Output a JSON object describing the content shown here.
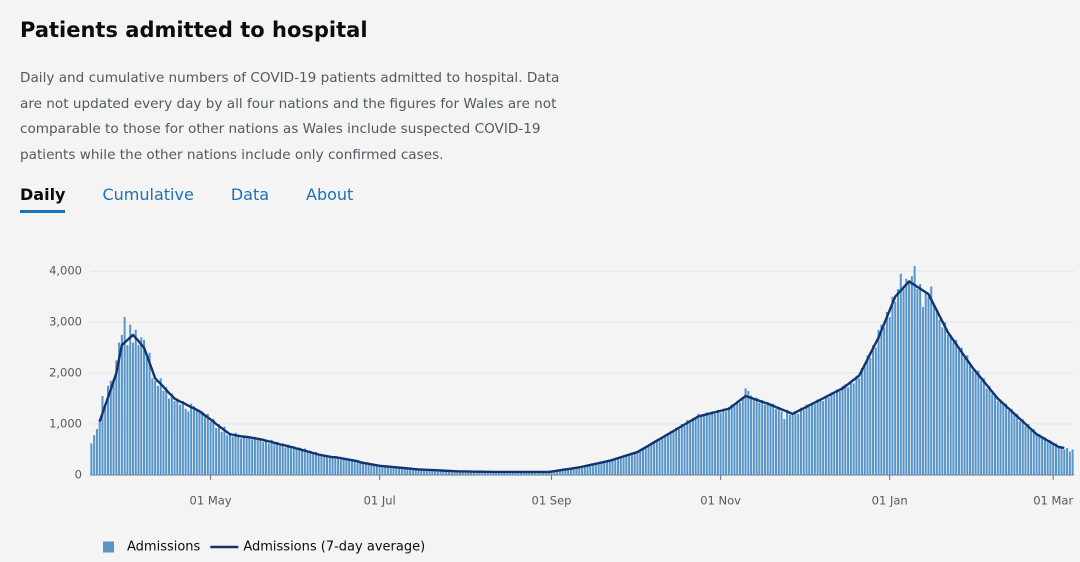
{
  "header": {
    "title": "Patients admitted to hospital",
    "description": "Daily and cumulative numbers of COVID-19 patients admitted to hospital. Data are not updated every day by all four nations and the figures for Wales are not comparable to those for other nations as Wales include suspected COVID-19 patients while the other nations include only confirmed cases."
  },
  "tabs": [
    "Daily",
    "Cumulative",
    "Data",
    "About"
  ],
  "chart_data": {
    "type": "bar",
    "x": [
      "19 Mar",
      "20 Mar",
      "21 Mar",
      "22 Mar",
      "23 Mar",
      "24 Mar",
      "25 Mar",
      "26 Mar",
      "27 Mar",
      "28 Mar",
      "29 Mar",
      "30 Mar",
      "31 Mar",
      "01 Apr",
      "02 Apr",
      "03 Apr",
      "04 Apr",
      "05 Apr",
      "06 Apr",
      "07 Apr",
      "08 Apr",
      "09 Apr",
      "10 Apr",
      "11 Apr",
      "12 Apr",
      "13 Apr",
      "14 Apr",
      "15 Apr",
      "16 Apr",
      "17 Apr",
      "18 Apr",
      "19 Apr",
      "20 Apr",
      "21 Apr",
      "22 Apr",
      "23 Apr",
      "24 Apr",
      "25 Apr",
      "26 Apr",
      "27 Apr",
      "28 Apr",
      "29 Apr",
      "30 Apr",
      "01 May",
      "02 May",
      "03 May",
      "04 May",
      "05 May",
      "06 May",
      "07 May",
      "08 May",
      "09 May",
      "10 May",
      "11 May",
      "12 May",
      "13 May",
      "14 May",
      "15 May",
      "16 May",
      "17 May",
      "18 May",
      "19 May",
      "20 May",
      "21 May",
      "22 May",
      "23 May",
      "24 May",
      "25 May",
      "26 May",
      "27 May",
      "28 May",
      "29 May",
      "30 May",
      "31 May",
      "01 Jun",
      "02 Jun",
      "03 Jun",
      "04 Jun",
      "05 Jun",
      "06 Jun",
      "07 Jun",
      "08 Jun",
      "09 Jun",
      "10 Jun",
      "11 Jun",
      "12 Jun",
      "13 Jun",
      "14 Jun",
      "15 Jun",
      "16 Jun",
      "17 Jun",
      "18 Jun",
      "19 Jun",
      "20 Jun",
      "21 Jun",
      "22 Jun",
      "23 Jun",
      "24 Jun",
      "25 Jun",
      "26 Jun",
      "27 Jun",
      "28 Jun",
      "29 Jun",
      "30 Jun",
      "01 Jul",
      "02 Jul",
      "03 Jul",
      "04 Jul",
      "05 Jul",
      "06 Jul",
      "07 Jul",
      "08 Jul",
      "09 Jul",
      "10 Jul",
      "11 Jul",
      "12 Jul",
      "13 Jul",
      "14 Jul",
      "15 Jul",
      "16 Jul",
      "17 Jul",
      "18 Jul",
      "19 Jul",
      "20 Jul",
      "21 Jul",
      "22 Jul",
      "23 Jul",
      "24 Jul",
      "25 Jul",
      "26 Jul",
      "27 Jul",
      "28 Jul",
      "29 Jul",
      "30 Jul",
      "31 Jul",
      "01 Aug",
      "02 Aug",
      "03 Aug",
      "04 Aug",
      "05 Aug",
      "06 Aug",
      "07 Aug",
      "08 Aug",
      "09 Aug",
      "10 Aug",
      "11 Aug",
      "12 Aug",
      "13 Aug",
      "14 Aug",
      "15 Aug",
      "16 Aug",
      "17 Aug",
      "18 Aug",
      "19 Aug",
      "20 Aug",
      "21 Aug",
      "22 Aug",
      "23 Aug",
      "24 Aug",
      "25 Aug",
      "26 Aug",
      "27 Aug",
      "28 Aug",
      "29 Aug",
      "30 Aug",
      "31 Aug",
      "01 Sep",
      "02 Sep",
      "03 Sep",
      "04 Sep",
      "05 Sep",
      "06 Sep",
      "07 Sep",
      "08 Sep",
      "09 Sep",
      "10 Sep",
      "11 Sep",
      "12 Sep",
      "13 Sep",
      "14 Sep",
      "15 Sep",
      "16 Sep",
      "17 Sep",
      "18 Sep",
      "19 Sep",
      "20 Sep",
      "21 Sep",
      "22 Sep",
      "23 Sep",
      "24 Sep",
      "25 Sep",
      "26 Sep",
      "27 Sep",
      "28 Sep",
      "29 Sep",
      "30 Sep",
      "01 Oct",
      "02 Oct",
      "03 Oct",
      "04 Oct",
      "05 Oct",
      "06 Oct",
      "07 Oct",
      "08 Oct",
      "09 Oct",
      "10 Oct",
      "11 Oct",
      "12 Oct",
      "13 Oct",
      "14 Oct",
      "15 Oct",
      "16 Oct",
      "17 Oct",
      "18 Oct",
      "19 Oct",
      "20 Oct",
      "21 Oct",
      "22 Oct",
      "23 Oct",
      "24 Oct",
      "25 Oct",
      "26 Oct",
      "27 Oct",
      "28 Oct",
      "29 Oct",
      "30 Oct",
      "31 Oct",
      "01 Nov",
      "02 Nov",
      "03 Nov",
      "04 Nov",
      "05 Nov",
      "06 Nov",
      "07 Nov",
      "08 Nov",
      "09 Nov",
      "10 Nov",
      "11 Nov",
      "12 Nov",
      "13 Nov",
      "14 Nov",
      "15 Nov",
      "16 Nov",
      "17 Nov",
      "18 Nov",
      "19 Nov",
      "20 Nov",
      "21 Nov",
      "22 Nov",
      "23 Nov",
      "24 Nov",
      "25 Nov",
      "26 Nov",
      "27 Nov",
      "28 Nov",
      "29 Nov",
      "30 Nov",
      "01 Dec",
      "02 Dec",
      "03 Dec",
      "04 Dec",
      "05 Dec",
      "06 Dec",
      "07 Dec",
      "08 Dec",
      "09 Dec",
      "10 Dec",
      "11 Dec",
      "12 Dec",
      "13 Dec",
      "14 Dec",
      "15 Dec",
      "16 Dec",
      "17 Dec",
      "18 Dec",
      "19 Dec",
      "20 Dec",
      "21 Dec",
      "22 Dec",
      "23 Dec",
      "24 Dec",
      "25 Dec",
      "26 Dec",
      "27 Dec",
      "28 Dec",
      "29 Dec",
      "30 Dec",
      "31 Dec",
      "01 Jan",
      "02 Jan",
      "03 Jan",
      "04 Jan",
      "05 Jan",
      "06 Jan",
      "07 Jan",
      "08 Jan",
      "09 Jan",
      "10 Jan",
      "11 Jan",
      "12 Jan",
      "13 Jan",
      "14 Jan",
      "15 Jan",
      "16 Jan",
      "17 Jan",
      "18 Jan",
      "19 Jan",
      "20 Jan",
      "21 Jan",
      "22 Jan",
      "23 Jan",
      "24 Jan",
      "25 Jan",
      "26 Jan",
      "27 Jan",
      "28 Jan",
      "29 Jan",
      "30 Jan",
      "31 Jan",
      "01 Feb",
      "02 Feb",
      "03 Feb",
      "04 Feb",
      "05 Feb",
      "06 Feb",
      "07 Feb",
      "08 Feb",
      "09 Feb",
      "10 Feb",
      "11 Feb",
      "12 Feb",
      "13 Feb",
      "14 Feb",
      "15 Feb",
      "16 Feb",
      "17 Feb",
      "18 Feb",
      "19 Feb",
      "20 Feb",
      "21 Feb",
      "22 Feb",
      "23 Feb",
      "24 Feb",
      "25 Feb",
      "26 Feb",
      "27 Feb",
      "28 Feb",
      "01 Mar",
      "02 Mar",
      "03 Mar",
      "04 Mar",
      "05 Mar",
      "06 Mar",
      "07 Mar",
      "08 Mar"
    ],
    "series": [
      {
        "name": "Admissions",
        "type": "bar",
        "color": "#5694ca",
        "values": [
          620,
          780,
          900,
          1100,
          1550,
          1350,
          1750,
          1850,
          1880,
          2250,
          2600,
          2750,
          3100,
          2550,
          2950,
          2600,
          2850,
          2550,
          2700,
          2650,
          2300,
          2400,
          1900,
          1850,
          1750,
          1900,
          1650,
          1720,
          1500,
          1600,
          1450,
          1500,
          1380,
          1450,
          1300,
          1250,
          1400,
          1350,
          1300,
          1280,
          1250,
          1150,
          1200,
          1050,
          1100,
          920,
          1000,
          850,
          950,
          780,
          820,
          750,
          830,
          790,
          720,
          780,
          740,
          760,
          700,
          750,
          690,
          720,
          650,
          700,
          620,
          690,
          600,
          650,
          570,
          620,
          540,
          600,
          530,
          560,
          500,
          540,
          470,
          520,
          440,
          470,
          410,
          450,
          380,
          400,
          360,
          390,
          340,
          370,
          330,
          350,
          300,
          340,
          290,
          320,
          270,
          300,
          250,
          280,
          230,
          250,
          210,
          230,
          190,
          200,
          170,
          185,
          160,
          175,
          150,
          165,
          140,
          155,
          130,
          140,
          120,
          130,
          110,
          120,
          105,
          110,
          100,
          108,
          95,
          100,
          90,
          95,
          85,
          90,
          80,
          85,
          75,
          78,
          70,
          72,
          68,
          72,
          65,
          70,
          62,
          68,
          64,
          66,
          60,
          65,
          58,
          63,
          57,
          62,
          58,
          62,
          57,
          61,
          59,
          63,
          56,
          60,
          58,
          62,
          57,
          61,
          59,
          63,
          58,
          62,
          60,
          64,
          70,
          74,
          88,
          90,
          105,
          106,
          120,
          122,
          138,
          140,
          155,
          165,
          170,
          190,
          192,
          215,
          218,
          240,
          242,
          262,
          265,
          290,
          300,
          310,
          340,
          345,
          370,
          378,
          405,
          410,
          440,
          445,
          490,
          500,
          560,
          560,
          620,
          630,
          690,
          690,
          750,
          760,
          820,
          860,
          840,
          930,
          900,
          1000,
          960,
          1080,
          1030,
          1120,
          1100,
          1200,
          1180,
          1150,
          1230,
          1180,
          1250,
          1200,
          1280,
          1220,
          1300,
          1250,
          1330,
          1380,
          1350,
          1450,
          1420,
          1530,
          1700,
          1650,
          1560,
          1480,
          1520,
          1420,
          1470,
          1380,
          1430,
          1350,
          1400,
          1300,
          1340,
          1250,
          1100,
          1280,
          1180,
          1220,
          1250,
          1200,
          1320,
          1280,
          1380,
          1340,
          1420,
          1390,
          1480,
          1500,
          1450,
          1560,
          1520,
          1620,
          1590,
          1680,
          1640,
          1750,
          1780,
          1720,
          1850,
          1800,
          1950,
          1900,
          2100,
          2150,
          2350,
          2300,
          2550,
          2500,
          2850,
          2950,
          2900,
          3200,
          3100,
          3500,
          3400,
          3650,
          3950,
          3700,
          3850,
          3800,
          3900,
          4100,
          3650,
          3750,
          3300,
          3600,
          3500,
          3700,
          3350,
          3250,
          3050,
          2900,
          3000,
          2750,
          2750,
          2600,
          2650,
          2450,
          2500,
          2300,
          2350,
          2150,
          2050,
          2000,
          2050,
          1850,
          1900,
          1700,
          1750,
          1600,
          1550,
          1450,
          1480,
          1380,
          1400,
          1260,
          1300,
          1180,
          1200,
          1050,
          1100,
          960,
          1000,
          870,
          900,
          780,
          800,
          720,
          740,
          650,
          680,
          600,
          620,
          540,
          560,
          500,
          530,
          460,
          500
        ]
      },
      {
        "name": "Admissions (7-day average)",
        "type": "line",
        "color": "#12346e",
        "values": [
          null,
          null,
          null,
          1050,
          1210,
          1370,
          1520,
          1680,
          1840,
          2000,
          2280,
          2550,
          2600,
          2650,
          2700,
          2750,
          2690,
          2630,
          2560,
          2500,
          2350,
          2200,
          2050,
          1900,
          1840,
          1790,
          1730,
          1670,
          1610,
          1560,
          1500,
          1470,
          1440,
          1420,
          1390,
          1360,
          1330,
          1310,
          1280,
          1250,
          1210,
          1170,
          1130,
          1090,
          1050,
          1000,
          960,
          920,
          880,
          840,
          800,
          790,
          780,
          770,
          760,
          750,
          750,
          740,
          730,
          720,
          710,
          700,
          690,
          670,
          660,
          650,
          630,
          620,
          600,
          590,
          580,
          560,
          550,
          540,
          520,
          510,
          490,
          480,
          460,
          450,
          430,
          420,
          400,
          390,
          380,
          370,
          360,
          350,
          350,
          340,
          330,
          320,
          310,
          300,
          290,
          280,
          270,
          250,
          240,
          230,
          220,
          210,
          200,
          190,
          180,
          175,
          170,
          165,
          160,
          155,
          150,
          145,
          140,
          135,
          130,
          125,
          120,
          115,
          110,
          107,
          105,
          102,
          99,
          97,
          94,
          91,
          89,
          86,
          83,
          81,
          78,
          75,
          73,
          70,
          69,
          69,
          68,
          67,
          66,
          66,
          65,
          64,
          63,
          63,
          62,
          61,
          61,
          60,
          60,
          60,
          60,
          60,
          60,
          60,
          60,
          60,
          60,
          60,
          60,
          60,
          60,
          60,
          60,
          60,
          60,
          60,
          68,
          76,
          85,
          93,
          101,
          109,
          117,
          125,
          134,
          142,
          150,
          162,
          174,
          185,
          197,
          209,
          221,
          233,
          245,
          256,
          268,
          280,
          297,
          314,
          331,
          348,
          365,
          382,
          399,
          416,
          433,
          450,
          482,
          514,
          545,
          577,
          609,
          641,
          673,
          705,
          736,
          768,
          800,
          832,
          864,
          895,
          927,
          959,
          991,
          1023,
          1055,
          1086,
          1118,
          1150,
          1164,
          1177,
          1191,
          1205,
          1218,
          1232,
          1245,
          1259,
          1273,
          1286,
          1300,
          1342,
          1383,
          1425,
          1467,
          1508,
          1550,
          1531,
          1513,
          1494,
          1475,
          1456,
          1438,
          1419,
          1400,
          1378,
          1356,
          1333,
          1311,
          1289,
          1267,
          1244,
          1222,
          1200,
          1228,
          1256,
          1283,
          1311,
          1339,
          1367,
          1394,
          1422,
          1450,
          1478,
          1506,
          1533,
          1561,
          1589,
          1617,
          1644,
          1672,
          1700,
          1742,
          1783,
          1825,
          1867,
          1908,
          1950,
          2057,
          2164,
          2271,
          2379,
          2486,
          2593,
          2700,
          2833,
          2967,
          3100,
          3233,
          3367,
          3500,
          3560,
          3620,
          3680,
          3740,
          3800,
          3764,
          3729,
          3693,
          3657,
          3621,
          3586,
          3550,
          3443,
          3336,
          3229,
          3121,
          3014,
          2907,
          2800,
          2722,
          2644,
          2567,
          2489,
          2411,
          2333,
          2256,
          2178,
          2100,
          2033,
          1967,
          1900,
          1833,
          1767,
          1700,
          1633,
          1567,
          1500,
          1450,
          1400,
          1350,
          1300,
          1250,
          1200,
          1150,
          1100,
          1050,
          1000,
          950,
          900,
          850,
          800,
          769,
          738,
          706,
          675,
          644,
          613,
          581,
          550,
          540,
          530,
          null,
          null,
          null
        ]
      }
    ],
    "xticks": [
      "01 May",
      "01 Jul",
      "01 Sep",
      "01 Nov",
      "01 Jan",
      "01 Mar"
    ],
    "ylim": [
      0,
      4200
    ],
    "yticks": [
      0,
      {
        "value": 1000,
        "label": "1,000"
      },
      {
        "value": 2000,
        "label": "2,000"
      },
      {
        "value": 3000,
        "label": "3,000"
      },
      {
        "value": 4000,
        "label": "4,000"
      }
    ],
    "grid": true
  }
}
